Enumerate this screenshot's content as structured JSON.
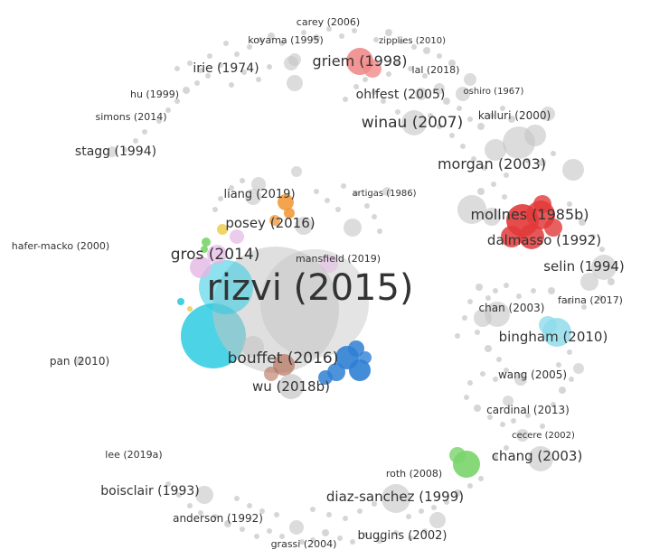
{
  "map": {
    "colors": {
      "grey": "#c4c4c4",
      "cyan": "#2dcbe0",
      "light_cyan": "#8fdcea",
      "red": "#e23a3a",
      "pink": "#f08a8a",
      "blue": "#2f7fd4",
      "orange": "#f29a3c",
      "green": "#79d46a",
      "lavender": "#e4b6e4",
      "brown": "#b5705a",
      "yellow": "#eecf5a"
    },
    "labels": [
      "rizvi (2015)",
      "bouffet (2016)",
      "gros (2014)",
      "posey (2016)",
      "liang (2019)",
      "wu (2018b)",
      "mansfield (2019)",
      "artigas (1986)",
      "hafer-macko (2000)",
      "pan (2010)",
      "mollnes (1985b)",
      "dalmasso (1992)",
      "selin (1994)",
      "bingham (2010)",
      "chan (2003)",
      "farina (2017)",
      "wang (2005)",
      "cardinal (2013)",
      "cecere (2002)",
      "chang (2003)",
      "roth (2008)",
      "diaz-sanchez (1999)",
      "buggins (2002)",
      "grassi (2004)",
      "anderson (1992)",
      "boisclair (1993)",
      "lee (2019a)",
      "stagg (1994)",
      "simons (2014)",
      "hu (1999)",
      "irie (1974)",
      "koyama (1995)",
      "carey (2006)",
      "griem (1998)",
      "zipplies (2010)",
      "lal (2018)",
      "ohlfest (2005)",
      "oshiro (1967)",
      "winau (2007)",
      "kalluri (2000)",
      "morgan (2003)"
    ]
  }
}
